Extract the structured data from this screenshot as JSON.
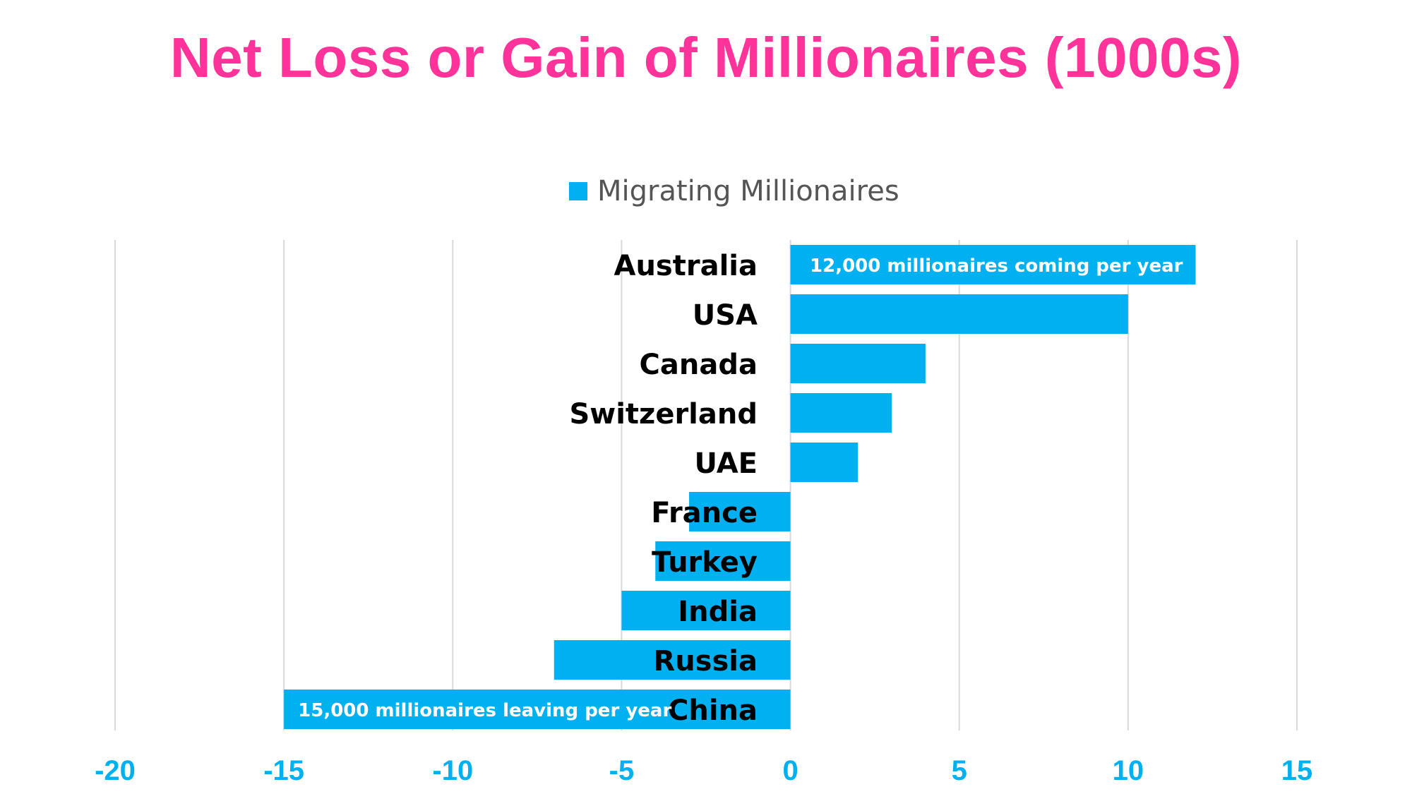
{
  "colors": {
    "title": "#FF3399",
    "bar": "#00B0F0",
    "tick": "#00B0F0",
    "grid": "#D9D9D9",
    "category_text": "#000000",
    "annotation_text": "#FFFFFF"
  },
  "chart_data": {
    "type": "bar",
    "orientation": "horizontal",
    "title": "Net Loss or Gain of Millionaires (1000s)",
    "xlabel": "",
    "ylabel": "",
    "categories": [
      "Australia",
      "USA",
      "Canada",
      "Switzerland",
      "UAE",
      "France",
      "Turkey",
      "India",
      "Russia",
      "China"
    ],
    "series": [
      {
        "name": "Migrating Millionaires",
        "values": [
          12,
          10,
          4,
          3,
          2,
          -3,
          -4,
          -5,
          -7,
          -15
        ]
      }
    ],
    "xlim": [
      -20,
      15
    ],
    "xticks": [
      -20,
      -15,
      -10,
      -5,
      0,
      5,
      10,
      15
    ],
    "grid": "vertical",
    "legend": "top-center",
    "annotations": [
      {
        "category": "Australia",
        "text": "12,000 millionaires coming per year"
      },
      {
        "category": "China",
        "text": "15,000 millionaires leaving per year"
      }
    ]
  }
}
